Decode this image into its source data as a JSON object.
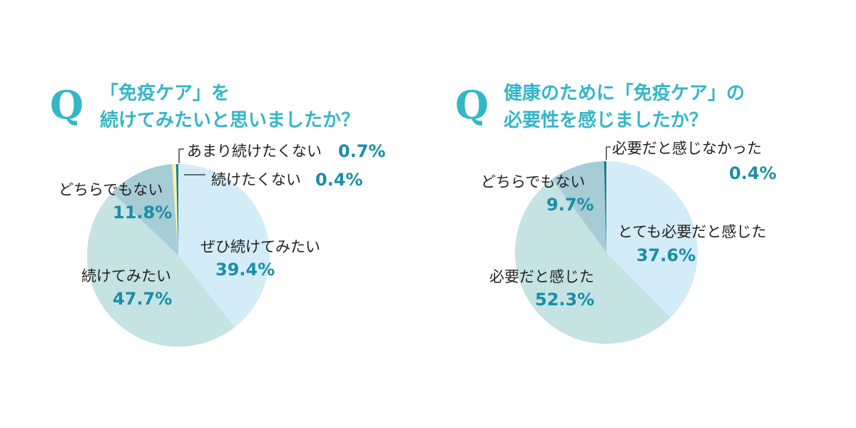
{
  "q_mark": "Q",
  "chart_data": [
    {
      "type": "pie",
      "title": [
        "「免疫ケア」を",
        "続けてみたいと思いましたか？"
      ],
      "slices": [
        {
          "label": "ぜひ続けてみたい",
          "value": 39.4,
          "display": "39.4%",
          "color": "#d3ecf7"
        },
        {
          "label": "続けてみたい",
          "value": 47.7,
          "display": "47.7%",
          "color": "#c4e3e2"
        },
        {
          "label": "どちらでもない",
          "value": 11.8,
          "display": "11.8%",
          "color": "#a6ccd6"
        },
        {
          "label": "あまり続けたくない",
          "value": 0.7,
          "display": "0.7%",
          "color": "#fbf3a8"
        },
        {
          "label": "続けたくない",
          "value": 0.4,
          "display": "0.4%",
          "color": "#137f93"
        }
      ]
    },
    {
      "type": "pie",
      "title": [
        "健康のために「免疫ケア」の",
        "必要性を感じましたか？"
      ],
      "slices": [
        {
          "label": "とても必要だと感じた",
          "value": 37.6,
          "display": "37.6%",
          "color": "#d3ecf7"
        },
        {
          "label": "必要だと感じた",
          "value": 52.3,
          "display": "52.3%",
          "color": "#c4e3e2"
        },
        {
          "label": "どちらでもない",
          "value": 9.7,
          "display": "9.7%",
          "color": "#a6ccd6"
        },
        {
          "label": "必要だと感じなかった",
          "value": 0.4,
          "display": "0.4%",
          "color": "#137f93"
        }
      ]
    }
  ]
}
